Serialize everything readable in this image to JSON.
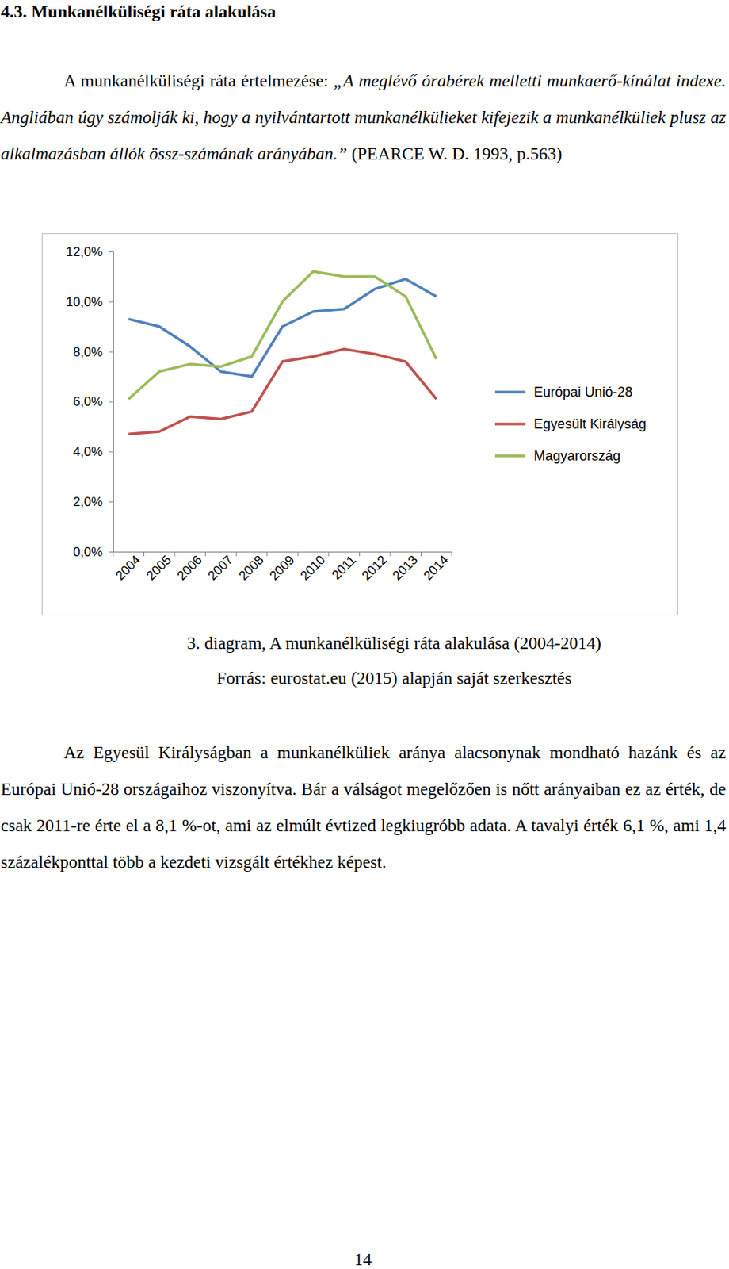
{
  "heading": "4.3. Munkanélküliségi ráta alakulása",
  "intro": {
    "lead": "A munkanélküliségi ráta értelmezése:",
    "quote": "„A meglévő órabérek melletti munkaerő-kínálat indexe. Angliában úgy számolják ki, hogy a nyilvántartott munkanélkülieket kifejezik a munkanélküliek plusz az alkalmazásban állók össz-számának arányában.”",
    "citation": "(PEARCE W. D. 1993, p.563)"
  },
  "chart_data": {
    "type": "line",
    "categories": [
      "2004",
      "2005",
      "2006",
      "2007",
      "2008",
      "2009",
      "2010",
      "2011",
      "2012",
      "2013",
      "2014"
    ],
    "series": [
      {
        "name": "Európai Unió-28",
        "color": "#4f81bd",
        "values": [
          9.3,
          9.0,
          8.2,
          7.2,
          7.0,
          9.0,
          9.6,
          9.7,
          10.5,
          10.9,
          10.2
        ]
      },
      {
        "name": "Egyesült Királyság",
        "color": "#c0504d",
        "values": [
          4.7,
          4.8,
          5.4,
          5.3,
          5.6,
          7.6,
          7.8,
          8.1,
          7.9,
          7.6,
          6.1
        ]
      },
      {
        "name": "Magyarország",
        "color": "#9bbb59",
        "values": [
          6.1,
          7.2,
          7.5,
          7.4,
          7.8,
          10.0,
          11.2,
          11.0,
          11.0,
          10.2,
          7.7
        ]
      }
    ],
    "ylim": [
      0,
      12
    ],
    "yticks": [
      {
        "value": 0,
        "label": "0,0%"
      },
      {
        "value": 2,
        "label": "2,0%"
      },
      {
        "value": 4,
        "label": "4,0%"
      },
      {
        "value": 6,
        "label": "6,0%"
      },
      {
        "value": 8,
        "label": "8,0%"
      },
      {
        "value": 10,
        "label": "10,0%"
      },
      {
        "value": 12,
        "label": "12,0%"
      }
    ],
    "grid": false,
    "legend": "right"
  },
  "caption": {
    "title": "3. diagram, A munkanélküliségi ráta alakulása (2004-2014)",
    "source": "Forrás: eurostat.eu (2015) alapján saját szerkesztés"
  },
  "body": "Az Egyesül Királyságban a munkanélküliek aránya alacsonynak mondható hazánk és az Európai Unió-28 országaihoz viszonyítva. Bár a válságot megelőzően is nőtt arányaiban ez az érték, de csak 2011-re érte el a 8,1 %-ot, ami az elmúlt évtized legkiugróbb adata. A tavalyi érték 6,1 %, ami 1,4 százalékponttal több a kezdeti vizsgált értékhez képest.",
  "page_number": 14
}
